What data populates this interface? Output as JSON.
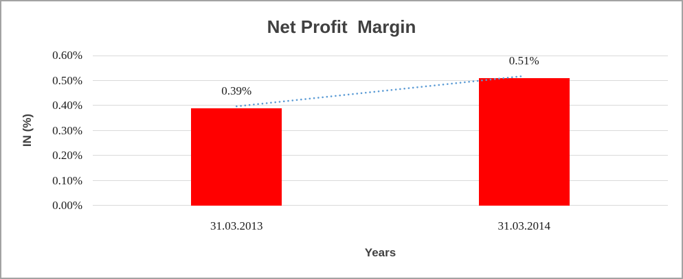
{
  "chart_data": {
    "type": "bar",
    "title": "Net Profit  Margin",
    "xlabel": "Years",
    "ylabel": "IN (%)",
    "categories": [
      "31.03.2013",
      "31.03.2014"
    ],
    "values": [
      0.39,
      0.51
    ],
    "data_labels": [
      "0.39%",
      "0.51%"
    ],
    "ylim": [
      0,
      0.6
    ],
    "y_ticks": [
      {
        "value": 0.0,
        "label": "0.00%"
      },
      {
        "value": 0.1,
        "label": "0.10%"
      },
      {
        "value": 0.2,
        "label": "0.20%"
      },
      {
        "value": 0.3,
        "label": "0.30%"
      },
      {
        "value": 0.4,
        "label": "0.40%"
      },
      {
        "value": 0.5,
        "label": "0.50%"
      },
      {
        "value": 0.6,
        "label": "0.60%"
      }
    ],
    "grid": true,
    "legend": "none",
    "bar_color": "#FF0000",
    "trendline": {
      "type": "linear",
      "style": "dotted",
      "color": "#5B9BD5"
    }
  },
  "colors": {
    "background": "#FFFFFF",
    "frame_border": "#A3A3A3",
    "gridline": "#D9D9D9",
    "title_text": "#404040",
    "axis_title_text": "#404040",
    "tick_text": "#1A1A1A"
  }
}
